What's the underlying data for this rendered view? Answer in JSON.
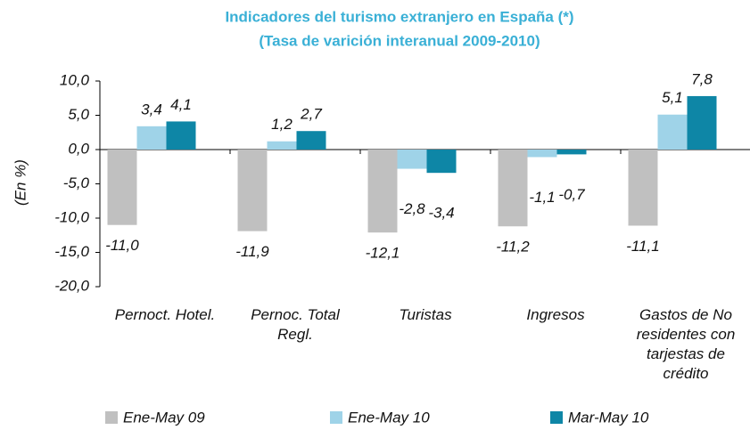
{
  "chart_data": {
    "type": "bar",
    "title": "Indicadores del turismo extranjero en España (*)",
    "subtitle": "(Tasa de varición interanual 2009-2010)",
    "y_label": "(En %)",
    "categories": [
      "Pernoct. Hotel.",
      "Pernoc. Total Regl.",
      "Turistas",
      "Ingresos",
      "Gastos de No residentes con tarjestas de crédito"
    ],
    "series": [
      {
        "name": "Ene-May 09",
        "color": "#c0c0c0",
        "values": [
          -11.0,
          -11.9,
          -12.1,
          -11.2,
          -11.1
        ],
        "value_labels": [
          "-11,0",
          "-11,9",
          "-12,1",
          "-11,2",
          "-11,1"
        ]
      },
      {
        "name": "Ene-May 10",
        "color": "#9fd3e8",
        "values": [
          3.4,
          1.2,
          -2.8,
          -1.1,
          5.1
        ],
        "value_labels": [
          "3,4",
          "1,2",
          "-2,8",
          "-1,1",
          "5,1"
        ]
      },
      {
        "name": "Mar-May 10",
        "color": "#0e86a6",
        "values": [
          4.1,
          2.7,
          -3.4,
          -0.7,
          7.8
        ],
        "value_labels": [
          "4,1",
          "2,7",
          "-3,4",
          "-0,7",
          "7,8"
        ]
      }
    ],
    "ylim": [
      -20,
      10
    ],
    "yticks": [
      {
        "value": -20,
        "label": "-20,0"
      },
      {
        "value": -15,
        "label": "-15,0"
      },
      {
        "value": -10,
        "label": "-10,0"
      },
      {
        "value": -5,
        "label": "-5,0"
      },
      {
        "value": 0,
        "label": "0,0"
      },
      {
        "value": 5,
        "label": "5,0"
      },
      {
        "value": 10,
        "label": "10,0"
      }
    ],
    "grid": false,
    "legend": "bottom"
  }
}
